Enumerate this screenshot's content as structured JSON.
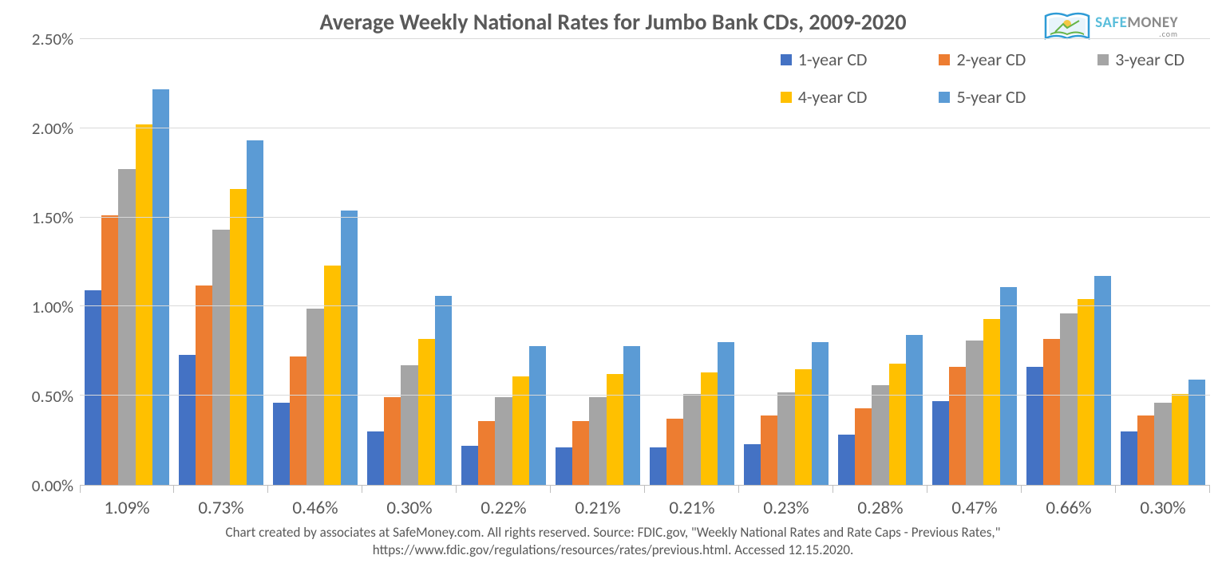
{
  "chart": {
    "type": "bar",
    "title": "Average Weekly National Rates for Jumbo Bank CDs, 2009-2020",
    "title_fontsize": 28,
    "title_color": "#595959",
    "background_color": "#ffffff",
    "grid_color": "#d9d9d9",
    "axis_color": "#bfbfbf",
    "label_color": "#595959",
    "y_axis": {
      "min": 0.0,
      "max": 2.5,
      "tick_step": 0.5,
      "ticks": [
        "0.00%",
        "0.50%",
        "1.00%",
        "1.50%",
        "2.00%",
        "2.50%"
      ],
      "tick_fontsize": 21
    },
    "x_labels": [
      "1.09%",
      "0.73%",
      "0.46%",
      "0.30%",
      "0.22%",
      "0.21%",
      "0.21%",
      "0.23%",
      "0.28%",
      "0.47%",
      "0.66%",
      "0.30%"
    ],
    "x_label_fontsize": 23,
    "series": [
      {
        "name": "1-year CD",
        "color": "#4472c4",
        "values": [
          1.09,
          0.73,
          0.46,
          0.3,
          0.22,
          0.21,
          0.21,
          0.23,
          0.28,
          0.47,
          0.66,
          0.3
        ]
      },
      {
        "name": "2-year CD",
        "color": "#ed7d31",
        "values": [
          1.51,
          1.12,
          0.72,
          0.49,
          0.36,
          0.36,
          0.37,
          0.39,
          0.43,
          0.66,
          0.82,
          0.39
        ]
      },
      {
        "name": "3-year CD",
        "color": "#a5a5a5",
        "values": [
          1.77,
          1.43,
          0.99,
          0.67,
          0.49,
          0.49,
          0.51,
          0.52,
          0.56,
          0.81,
          0.96,
          0.46
        ]
      },
      {
        "name": "4-year CD",
        "color": "#ffc000",
        "values": [
          2.02,
          1.66,
          1.23,
          0.82,
          0.61,
          0.62,
          0.63,
          0.65,
          0.68,
          0.93,
          1.04,
          0.51
        ]
      },
      {
        "name": "5-year CD",
        "color": "#5b9bd5",
        "values": [
          2.22,
          1.93,
          1.54,
          1.06,
          0.78,
          0.78,
          0.8,
          0.8,
          0.84,
          1.11,
          1.17,
          0.59
        ]
      }
    ],
    "legend": {
      "position": "top-right",
      "fontsize": 22,
      "swatch_size": 14
    },
    "footer": {
      "line1": "Chart created by associates at SafeMoney.com. All rights reserved. Source: FDIC.gov, \"Weekly National Rates and Rate Caps - Previous Rates,\"",
      "line2": "https://www.fdic.gov/regulations/resources/rates/previous.html. Accessed 12.15.2020.",
      "fontsize": 17
    }
  },
  "logo": {
    "text_safe": "SAFE",
    "text_money": "MONEY",
    "text_com": ".com",
    "color_safe": "#5bbedb",
    "color_money": "#8a8a8a",
    "badge_outer": "#2e9bd6",
    "badge_green": "#66b447",
    "badge_sun": "#f5c843"
  }
}
